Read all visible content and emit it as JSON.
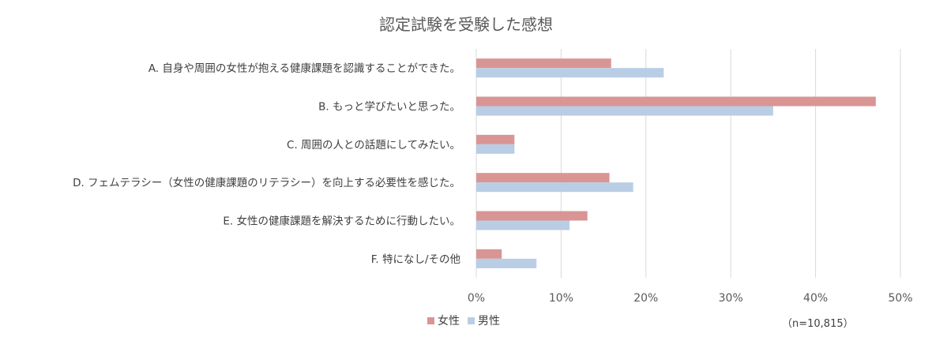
{
  "chart_data": {
    "type": "bar",
    "orientation": "horizontal",
    "title": "認定試験を受験した感想",
    "categories": [
      "A. 自身や周囲の女性が抱える健康課題を認識することができた。",
      "B. もっと学びたいと思った。",
      "C. 周囲の人との話題にしてみたい。",
      "D. フェムテラシー（女性の健康課題のリテラシー）を向上する必要性を感じた。",
      "E. 女性の健康課題を解決するために行動したい。",
      "F. 特になし/その他"
    ],
    "series": [
      {
        "name": "女性",
        "color": "#d99594",
        "values": [
          15.9,
          47.1,
          4.5,
          15.7,
          13.1,
          3.0
        ]
      },
      {
        "name": "男性",
        "color": "#b9cde5",
        "values": [
          22.1,
          35.0,
          4.5,
          18.5,
          11.0,
          7.1
        ]
      }
    ],
    "xlim": [
      0,
      50
    ],
    "xticks": [
      "0%",
      "10%",
      "20%",
      "30%",
      "40%",
      "50%"
    ],
    "grid": true,
    "legend_position": "bottom",
    "note": "（n=10,815）"
  }
}
